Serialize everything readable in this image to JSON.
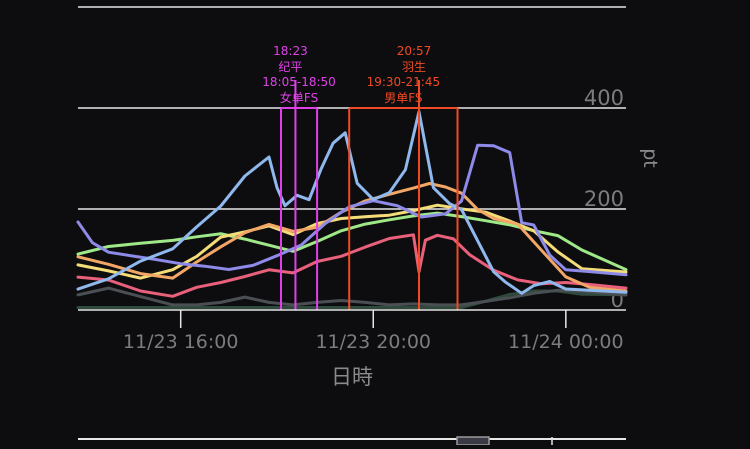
{
  "chart_data": {
    "type": "line",
    "title": "",
    "xlabel": "日時",
    "ylabel": "pt",
    "x_range": [
      "2016-11-23 13:52",
      "2016-11-24 01:15"
    ],
    "x_ticks": [
      {
        "x": "2016-11-23 16:00",
        "label": "11/23 16:00"
      },
      {
        "x": "2016-11-23 20:00",
        "label": "11/23 20:00"
      },
      {
        "x": "2016-11-24 00:00",
        "label": "11/24 00:00"
      }
    ],
    "ylim": [
      0,
      400
    ],
    "y_ticks": [
      0,
      200,
      400
    ],
    "grid": true,
    "legend": "none",
    "annotations": [
      {
        "kind": "range",
        "start": "2016-11-23 18:05",
        "end": "2016-11-23 18:50",
        "line1": "18:05-18:50",
        "line2": "女单FS",
        "color": "#e040e8"
      },
      {
        "kind": "point",
        "at": "2016-11-23 18:23",
        "line1": "18:23",
        "line2": "纪平",
        "color": "#e040e8"
      },
      {
        "kind": "range",
        "start": "2016-11-23 19:30",
        "end": "2016-11-23 21:45",
        "line1": "19:30-21:45",
        "line2": "男单FS",
        "color": "#f04a24"
      },
      {
        "kind": "point",
        "at": "2016-11-23 20:57",
        "line1": "20:57",
        "line2": "羽生",
        "color": "#f04a24"
      }
    ],
    "series": [
      {
        "color": "#8fb8ec",
        "x": [
          "13:52",
          "14:30",
          "15:10",
          "15:50",
          "16:20",
          "16:50",
          "17:20",
          "17:50",
          "18:00",
          "18:10",
          "18:25",
          "18:40",
          "18:55",
          "19:10",
          "19:25",
          "19:40",
          "20:00",
          "20:20",
          "20:40",
          "20:57",
          "21:15",
          "21:35",
          "21:50",
          "22:10",
          "22:30",
          "22:45",
          "23:05",
          "23:20",
          "23:40",
          "24:00",
          "24:30",
          "25:15"
        ],
        "values": [
          40,
          60,
          90,
          120,
          160,
          200,
          260,
          300,
          240,
          210,
          230,
          220,
          280,
          330,
          350,
          250,
          220,
          230,
          280,
          390,
          240,
          210,
          200,
          140,
          70,
          50,
          40,
          55,
          50,
          45,
          45,
          40
        ]
      },
      {
        "color": "#8d8ae8",
        "x": [
          "13:52",
          "14:10",
          "14:30",
          "15:00",
          "15:30",
          "16:00",
          "16:30",
          "17:00",
          "17:30",
          "18:00",
          "18:30",
          "19:00",
          "19:30",
          "20:00",
          "20:30",
          "21:00",
          "21:30",
          "21:50",
          "22:10",
          "22:30",
          "22:50",
          "23:05",
          "23:20",
          "23:40",
          "24:00",
          "24:30",
          "25:15"
        ],
        "values": [
          175,
          130,
          120,
          110,
          100,
          90,
          85,
          80,
          90,
          110,
          130,
          170,
          200,
          210,
          200,
          180,
          190,
          220,
          320,
          330,
          310,
          170,
          165,
          110,
          80,
          75,
          70
        ]
      },
      {
        "color": "#f2a766",
        "x": [
          "13:52",
          "14:30",
          "15:10",
          "15:50",
          "16:20",
          "16:50",
          "17:20",
          "17:50",
          "18:20",
          "18:50",
          "19:20",
          "19:50",
          "20:20",
          "20:50",
          "21:10",
          "21:30",
          "21:50",
          "22:10",
          "22:30",
          "23:00",
          "23:30",
          "24:00",
          "24:30",
          "25:15"
        ],
        "values": [
          100,
          90,
          70,
          60,
          90,
          120,
          150,
          170,
          160,
          170,
          200,
          220,
          230,
          240,
          250,
          245,
          230,
          200,
          180,
          170,
          120,
          70,
          50,
          40
        ]
      },
      {
        "color": "#f4dd78",
        "x": [
          "13:52",
          "14:30",
          "15:10",
          "15:50",
          "16:20",
          "16:50",
          "17:20",
          "17:50",
          "18:20",
          "18:50",
          "19:20",
          "19:50",
          "20:20",
          "20:50",
          "21:20",
          "21:50",
          "22:20",
          "22:50",
          "23:20",
          "23:50",
          "24:20",
          "25:15"
        ],
        "values": [
          90,
          80,
          70,
          80,
          110,
          150,
          160,
          170,
          150,
          170,
          180,
          185,
          190,
          200,
          210,
          200,
          190,
          170,
          150,
          110,
          80,
          70
        ]
      },
      {
        "color": "#9fe888",
        "x": [
          "13:52",
          "14:30",
          "15:10",
          "15:50",
          "16:20",
          "16:50",
          "17:20",
          "17:50",
          "18:20",
          "18:50",
          "19:20",
          "19:50",
          "20:20",
          "20:50",
          "21:20",
          "21:50",
          "22:20",
          "22:50",
          "23:20",
          "23:50",
          "24:20",
          "25:15"
        ],
        "values": [
          110,
          120,
          130,
          140,
          145,
          150,
          140,
          130,
          120,
          140,
          160,
          170,
          175,
          180,
          185,
          180,
          175,
          170,
          160,
          150,
          120,
          80
        ]
      },
      {
        "color": "#e8607a",
        "x": [
          "13:52",
          "14:30",
          "15:10",
          "15:50",
          "16:20",
          "16:50",
          "17:20",
          "17:50",
          "18:20",
          "18:50",
          "19:20",
          "19:50",
          "20:20",
          "20:50",
          "20:57",
          "21:05",
          "21:20",
          "21:40",
          "22:00",
          "22:30",
          "23:00",
          "23:30",
          "24:00",
          "24:30",
          "25:15"
        ],
        "values": [
          70,
          60,
          40,
          30,
          50,
          60,
          70,
          80,
          70,
          90,
          100,
          120,
          140,
          150,
          80,
          140,
          150,
          140,
          110,
          80,
          60,
          50,
          50,
          45,
          40
        ]
      },
      {
        "color": "#4a4f54",
        "x": [
          "13:52",
          "14:30",
          "15:10",
          "15:50",
          "16:20",
          "16:50",
          "17:20",
          "17:50",
          "18:20",
          "18:50",
          "19:20",
          "19:50",
          "20:20",
          "20:50",
          "21:20",
          "21:50",
          "22:20",
          "22:50",
          "23:20",
          "23:50",
          "24:20",
          "25:15"
        ],
        "values": [
          30,
          40,
          20,
          10,
          10,
          15,
          20,
          15,
          10,
          15,
          20,
          15,
          10,
          12,
          10,
          10,
          20,
          30,
          40,
          45,
          40,
          35
        ]
      },
      {
        "color": "#2f4a3c",
        "x": [
          "13:52",
          "14:30",
          "15:10",
          "15:50",
          "16:20",
          "16:50",
          "17:20",
          "17:50",
          "18:20",
          "18:50",
          "19:20",
          "19:50",
          "20:20",
          "20:50",
          "21:20",
          "21:50",
          "22:20",
          "22:50",
          "23:20",
          "23:50",
          "24:20",
          "25:15"
        ],
        "values": [
          5,
          5,
          5,
          5,
          5,
          5,
          5,
          5,
          5,
          5,
          5,
          5,
          5,
          5,
          5,
          5,
          20,
          30,
          35,
          35,
          30,
          30
        ]
      }
    ]
  }
}
